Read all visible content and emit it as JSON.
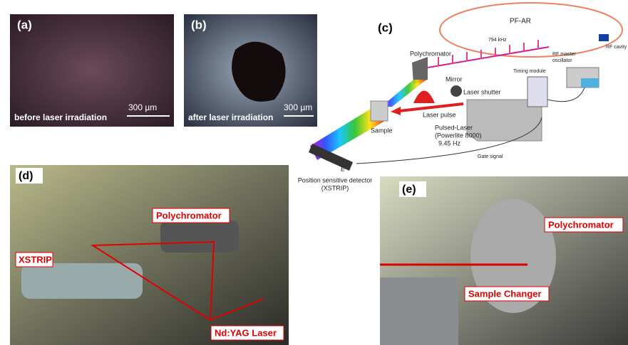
{
  "panels": {
    "a": {
      "label": "(a)",
      "caption": "before laser irradiation",
      "scale": "300 µm"
    },
    "b": {
      "label": "(b)",
      "caption": "after laser irradiation",
      "scale": "300 µm"
    },
    "c": {
      "label": "(c)",
      "ring": "PF-AR",
      "frequency": "794 kHz",
      "rf_cavity": "RF cavity",
      "polychromator": "Polychromator",
      "rf_master": [
        "RF master",
        "oscillator"
      ],
      "timing_module": "Timing module",
      "mirror": "Mirror",
      "laser_shutter": "Laser shutter",
      "laser_pulse": "Laser pulse",
      "sample": "Sample",
      "pulsed_laser": [
        "Pulsed-Laser",
        "(Powerlite 8000)"
      ],
      "rep_rate": "9.45 Hz",
      "gate_signal": "Gate signal",
      "energy": "E",
      "detector": [
        "Position sensitive detector",
        "(XSTRIP)"
      ]
    },
    "d": {
      "label": "(d)",
      "polychromator": "Polychromator",
      "xstrip": "XSTRIP",
      "laser": "Nd:YAG Laser"
    },
    "e": {
      "label": "(e)",
      "polychromator": "Polychromator",
      "sample_changer": "Sample Changer"
    }
  }
}
